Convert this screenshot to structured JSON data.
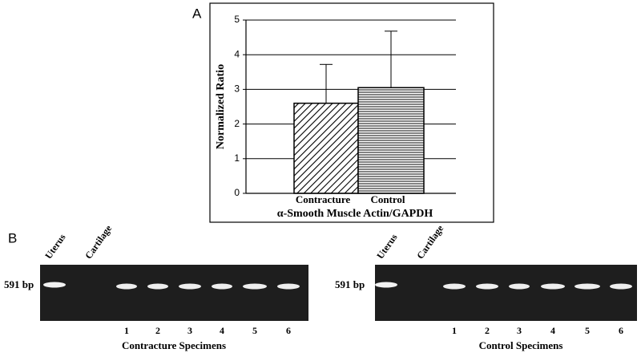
{
  "chart_data": {
    "type": "bar",
    "panel_label": "A",
    "y_label": "Normalized Ratio",
    "x_label": "α-Smooth Muscle Actin/GAPDH",
    "categories": [
      "Contracture",
      "Control"
    ],
    "values": [
      2.6,
      3.05
    ],
    "errors": [
      1.12,
      1.63
    ],
    "patterns": [
      "diagonal",
      "horizontal"
    ],
    "ylim": [
      0,
      5
    ],
    "yticks": [
      0,
      1,
      2,
      3,
      4,
      5
    ],
    "grid": true
  },
  "panel_b": {
    "panel_label": "B",
    "gels": [
      {
        "marker": "591 bp",
        "lanes": [
          "Uterus",
          "Cartilage"
        ],
        "numbers": [
          "1",
          "2",
          "3",
          "4",
          "5",
          "6"
        ],
        "caption": "Contracture Specimens"
      },
      {
        "marker": "591 bp",
        "lanes": [
          "Uterus",
          "Cartilage"
        ],
        "numbers": [
          "1",
          "2",
          "3",
          "4",
          "5",
          "6"
        ],
        "caption": "Control Specimens"
      }
    ]
  }
}
